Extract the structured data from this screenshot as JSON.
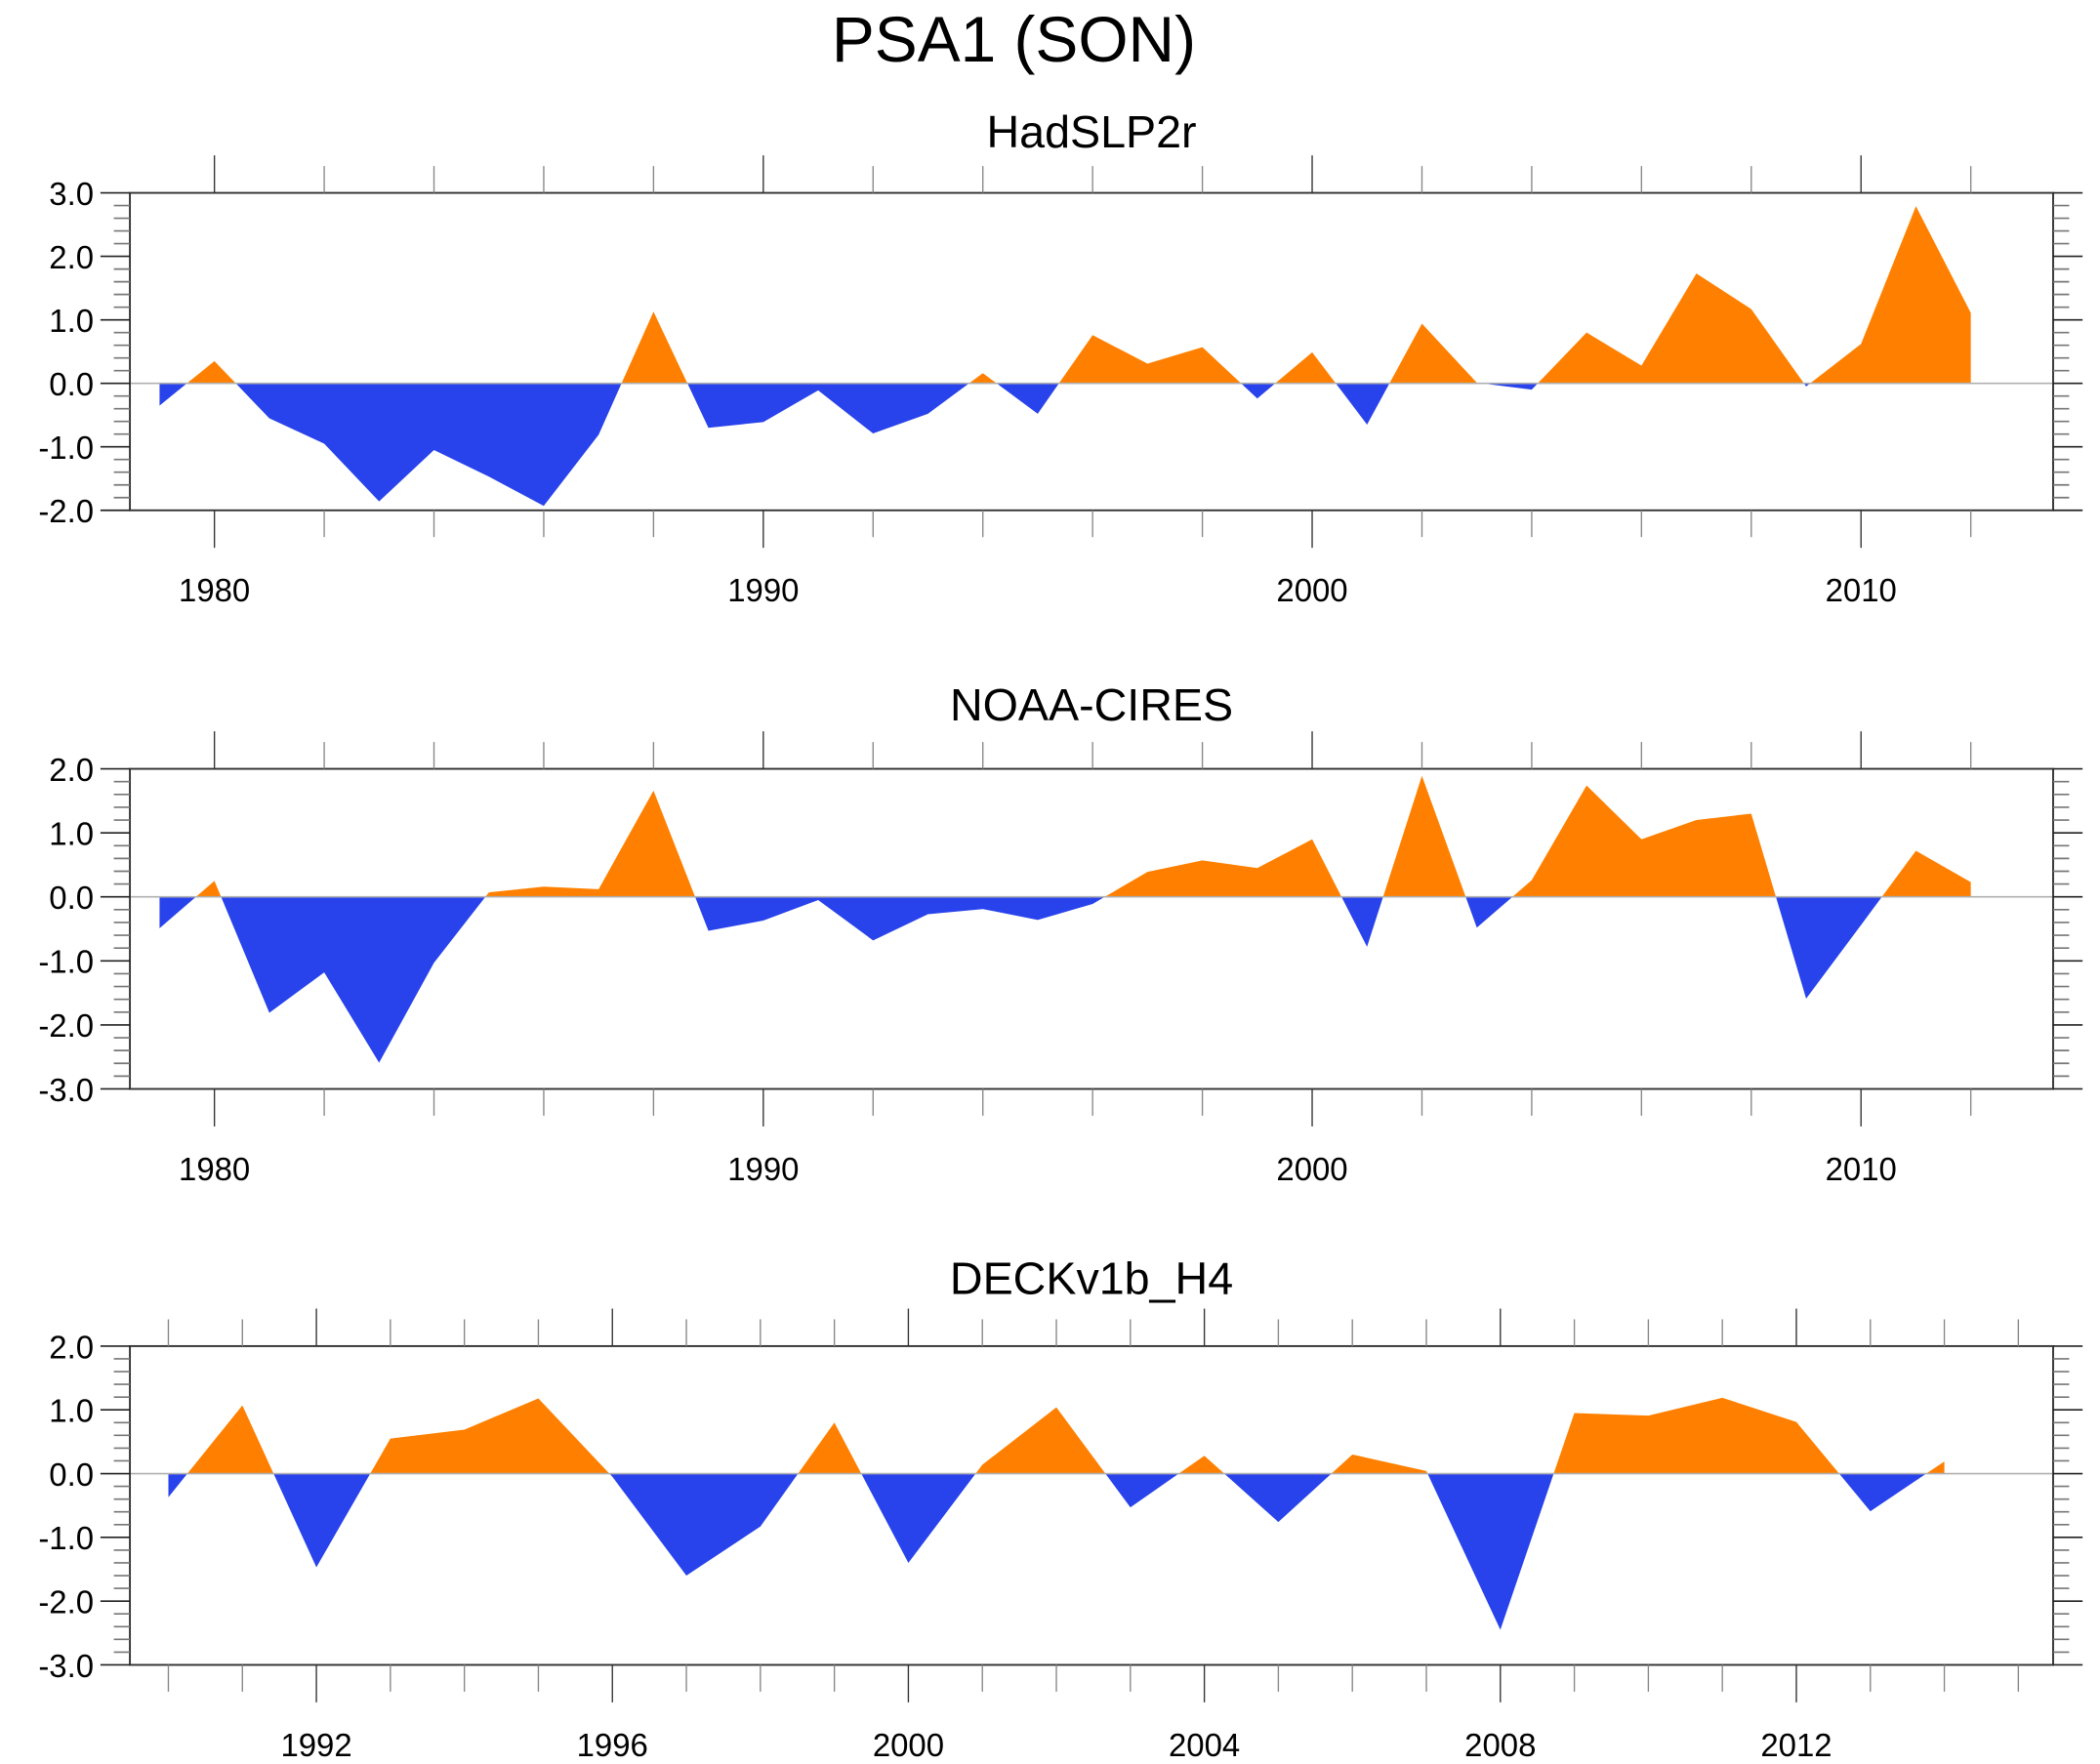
{
  "chart_data": {
    "type": "area",
    "title": "PSA1 (SON)",
    "colors": {
      "positive": "#ff8000",
      "negative": "#2843eb",
      "zero_line": "#b0b0b0",
      "axis": "#000000"
    },
    "panels": [
      {
        "title": "HadSLP2r",
        "xlim": [
          1978.46,
          2013.5
        ],
        "ylim": [
          -2.0,
          3.0
        ],
        "yticks": [
          3.0,
          2.0,
          1.0,
          0.0,
          -1.0,
          -2.0
        ],
        "ytick_labels": [
          "3.0",
          "2.0",
          "1.0",
          "0.0",
          "-1.0",
          "-2.0"
        ],
        "y_minor_step": 0.2,
        "xticks_major": [
          1980,
          1990,
          2000,
          2010
        ],
        "xtick_labels": [
          "1980",
          "1990",
          "2000",
          "2010"
        ],
        "x_minor_step": 2,
        "x": [
          1979,
          1980,
          1981,
          1982,
          1983,
          1984,
          1985,
          1986,
          1987,
          1988,
          1989,
          1990,
          1991,
          1992,
          1993,
          1994,
          1995,
          1996,
          1997,
          1998,
          1999,
          2000,
          2001,
          2002,
          2003,
          2004,
          2005,
          2006,
          2007,
          2008,
          2009,
          2010,
          2011,
          2012
        ],
        "values": [
          -0.35,
          0.35,
          -0.55,
          -0.95,
          -1.86,
          -1.05,
          -1.47,
          -1.93,
          -0.81,
          1.13,
          -0.7,
          -0.61,
          -0.11,
          -0.79,
          -0.48,
          0.16,
          -0.48,
          0.76,
          0.31,
          0.57,
          -0.24,
          0.49,
          -0.65,
          0.94,
          0.01,
          -0.1,
          0.8,
          0.28,
          1.73,
          1.17,
          -0.05,
          0.62,
          2.79,
          1.11
        ]
      },
      {
        "title": "NOAA-CIRES",
        "xlim": [
          1978.46,
          2013.5
        ],
        "ylim": [
          -3.0,
          2.0
        ],
        "yticks": [
          2.0,
          1.0,
          0.0,
          -1.0,
          -2.0,
          -3.0
        ],
        "ytick_labels": [
          "2.0",
          "1.0",
          "0.0",
          "-1.0",
          "-2.0",
          "-3.0"
        ],
        "y_minor_step": 0.2,
        "xticks_major": [
          1980,
          1990,
          2000,
          2010
        ],
        "xtick_labels": [
          "1980",
          "1990",
          "2000",
          "2010"
        ],
        "x_minor_step": 2,
        "x": [
          1979,
          1980,
          1981,
          1982,
          1983,
          1984,
          1985,
          1986,
          1987,
          1988,
          1989,
          1990,
          1991,
          1992,
          1993,
          1994,
          1995,
          1996,
          1997,
          1998,
          1999,
          2000,
          2001,
          2002,
          2003,
          2004,
          2005,
          2006,
          2007,
          2008,
          2009,
          2010,
          2011,
          2012
        ],
        "values": [
          -0.49,
          0.25,
          -1.81,
          -1.18,
          -2.59,
          -1.03,
          0.07,
          0.16,
          0.12,
          1.66,
          -0.53,
          -0.37,
          -0.05,
          -0.68,
          -0.27,
          -0.19,
          -0.36,
          -0.11,
          0.39,
          0.57,
          0.45,
          0.9,
          -0.78,
          1.89,
          -0.48,
          0.26,
          1.74,
          0.9,
          1.2,
          1.3,
          -1.59,
          -0.44,
          0.72,
          0.23
        ]
      },
      {
        "title": "DECKv1b_H4",
        "xlim": [
          1989.48,
          2015.47
        ],
        "ylim": [
          -3.0,
          2.0
        ],
        "yticks": [
          2.0,
          1.0,
          0.0,
          -1.0,
          -2.0,
          -3.0
        ],
        "ytick_labels": [
          "2.0",
          "1.0",
          "0.0",
          "-1.0",
          "-2.0",
          "-3.0"
        ],
        "y_minor_step": 0.2,
        "xticks_major": [
          1992,
          1996,
          2000,
          2004,
          2008,
          2012
        ],
        "xtick_labels": [
          "1992",
          "1996",
          "2000",
          "2004",
          "2008",
          "2012"
        ],
        "x_minor_step": 1,
        "x": [
          1990,
          1991,
          1992,
          1993,
          1994,
          1995,
          1996,
          1997,
          1998,
          1999,
          2000,
          2001,
          2002,
          2003,
          2004,
          2005,
          2006,
          2007,
          2008,
          2009,
          2010,
          2011,
          2012,
          2013,
          2014
        ],
        "values": [
          -0.37,
          1.07,
          -1.47,
          0.55,
          0.69,
          1.18,
          -0.05,
          -1.6,
          -0.83,
          0.8,
          -1.4,
          0.14,
          1.04,
          -0.53,
          0.28,
          -0.76,
          0.3,
          0.04,
          -2.45,
          0.95,
          0.91,
          1.19,
          0.81,
          -0.59,
          0.19
        ]
      }
    ]
  }
}
